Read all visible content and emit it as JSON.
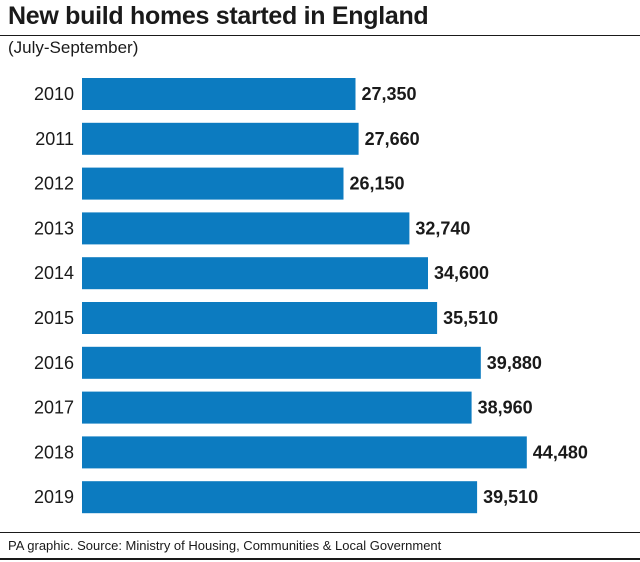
{
  "header": {
    "title": "New build homes started in England",
    "subtitle": "(July-September)"
  },
  "footer": {
    "source": "PA graphic. Source: Ministry of Housing, Communities & Local Government"
  },
  "colors": {
    "bar": "#0c7bc0"
  },
  "chart_data": {
    "type": "bar",
    "orientation": "horizontal",
    "title": "New build homes started in England",
    "subtitle": "(July-September)",
    "categories": [
      "2010",
      "2011",
      "2012",
      "2013",
      "2014",
      "2015",
      "2016",
      "2017",
      "2018",
      "2019"
    ],
    "values": [
      27350,
      27660,
      26150,
      32740,
      34600,
      35510,
      39880,
      38960,
      44480,
      39510
    ],
    "value_labels": [
      "27,350",
      "27,660",
      "26,150",
      "32,740",
      "34,600",
      "35,510",
      "39,880",
      "38,960",
      "44,480",
      "39,510"
    ],
    "xlim": [
      0,
      50000
    ],
    "grid": false,
    "legend": "none"
  }
}
